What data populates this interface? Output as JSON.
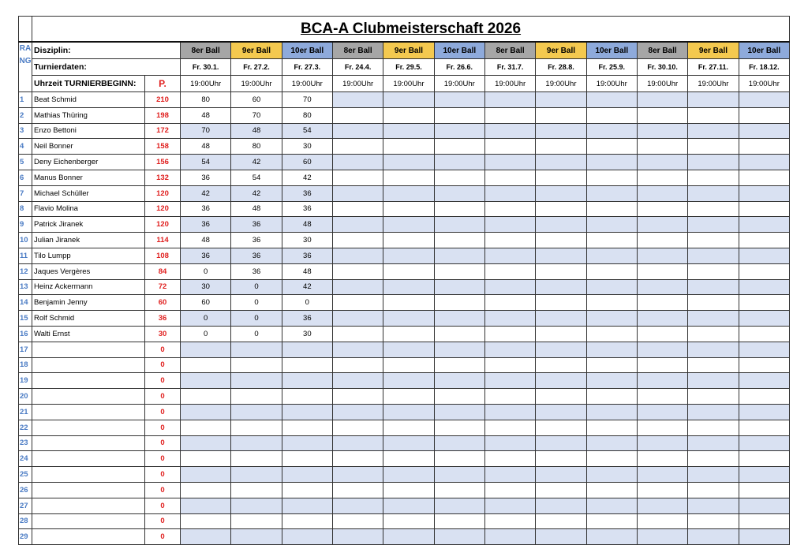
{
  "title": "BCA-A Clubmeisterschaft 2026",
  "header": {
    "rang": "RANG",
    "discipline_label": "Disziplin:",
    "dates_label": "Turnierdaten:",
    "time_label": "Uhrzeit TURNIERBEGINN:",
    "points_label": "P."
  },
  "events": [
    {
      "discipline": "8er Ball",
      "date": "Fr. 30.1.",
      "time": "19:00Uhr",
      "color": "#a6a6a6"
    },
    {
      "discipline": "9er Ball",
      "date": "Fr. 27.2.",
      "time": "19:00Uhr",
      "color": "#f4c94f"
    },
    {
      "discipline": "10er Ball",
      "date": "Fr. 27.3.",
      "time": "19:00Uhr",
      "color": "#8eaadb"
    },
    {
      "discipline": "8er Ball",
      "date": "Fr. 24.4.",
      "time": "19:00Uhr",
      "color": "#a6a6a6"
    },
    {
      "discipline": "9er Ball",
      "date": "Fr. 29.5.",
      "time": "19:00Uhr",
      "color": "#f4c94f"
    },
    {
      "discipline": "10er Ball",
      "date": "Fr. 26.6.",
      "time": "19:00Uhr",
      "color": "#8eaadb"
    },
    {
      "discipline": "8er Ball",
      "date": "Fr. 31.7.",
      "time": "19:00Uhr",
      "color": "#a6a6a6"
    },
    {
      "discipline": "9er Ball",
      "date": "Fr. 28.8.",
      "time": "19:00Uhr",
      "color": "#f4c94f"
    },
    {
      "discipline": "10er Ball",
      "date": "Fr. 25.9.",
      "time": "19:00Uhr",
      "color": "#8eaadb"
    },
    {
      "discipline": "8er Ball",
      "date": "Fr. 30.10.",
      "time": "19:00Uhr",
      "color": "#a6a6a6"
    },
    {
      "discipline": "9er Ball",
      "date": "Fr. 27.11.",
      "time": "19:00Uhr",
      "color": "#f4c94f"
    },
    {
      "discipline": "10er Ball",
      "date": "Fr. 18.12.",
      "time": "19:00Uhr",
      "color": "#8eaadb"
    }
  ],
  "rows": [
    {
      "rank": 1,
      "name": "Beat Schmid",
      "points": 210,
      "scores": [
        80,
        60,
        70
      ]
    },
    {
      "rank": 2,
      "name": "Mathias Thüring",
      "points": 198,
      "scores": [
        48,
        70,
        80
      ]
    },
    {
      "rank": 3,
      "name": "Enzo Bettoni",
      "points": 172,
      "scores": [
        70,
        48,
        54
      ]
    },
    {
      "rank": 4,
      "name": "Neil Bonner",
      "points": 158,
      "scores": [
        48,
        80,
        30
      ]
    },
    {
      "rank": 5,
      "name": "Deny Eichenberger",
      "points": 156,
      "scores": [
        54,
        42,
        60
      ]
    },
    {
      "rank": 6,
      "name": "Manus Bonner",
      "points": 132,
      "scores": [
        36,
        54,
        42
      ]
    },
    {
      "rank": 7,
      "name": "Michael Schüller",
      "points": 120,
      "scores": [
        42,
        42,
        36
      ]
    },
    {
      "rank": 8,
      "name": "Flavio Molina",
      "points": 120,
      "scores": [
        36,
        48,
        36
      ]
    },
    {
      "rank": 9,
      "name": "Patrick Jiranek",
      "points": 120,
      "scores": [
        36,
        36,
        48
      ]
    },
    {
      "rank": 10,
      "name": "Julian Jiranek",
      "points": 114,
      "scores": [
        48,
        36,
        30
      ]
    },
    {
      "rank": 11,
      "name": "Tilo Lumpp",
      "points": 108,
      "scores": [
        36,
        36,
        36
      ]
    },
    {
      "rank": 12,
      "name": "Jaques Vergères",
      "points": 84,
      "scores": [
        0,
        36,
        48
      ]
    },
    {
      "rank": 13,
      "name": "Heinz Ackermann",
      "points": 72,
      "scores": [
        30,
        0,
        42
      ]
    },
    {
      "rank": 14,
      "name": "Benjamin Jenny",
      "points": 60,
      "scores": [
        60,
        0,
        0
      ]
    },
    {
      "rank": 15,
      "name": "Rolf Schmid",
      "points": 36,
      "scores": [
        0,
        0,
        36
      ]
    },
    {
      "rank": 16,
      "name": "Walti Ernst",
      "points": 30,
      "scores": [
        0,
        0,
        30
      ]
    },
    {
      "rank": 17,
      "points": 0
    },
    {
      "rank": 18,
      "points": 0
    },
    {
      "rank": 19,
      "points": 0
    },
    {
      "rank": 20,
      "points": 0
    },
    {
      "rank": 21,
      "points": 0
    },
    {
      "rank": 22,
      "points": 0
    },
    {
      "rank": 23,
      "points": 0
    },
    {
      "rank": 24,
      "points": 0
    },
    {
      "rank": 25,
      "points": 0
    },
    {
      "rank": 26,
      "points": 0
    },
    {
      "rank": 27,
      "points": 0
    },
    {
      "rank": 28,
      "points": 0
    },
    {
      "rank": 29,
      "points": 0
    }
  ]
}
